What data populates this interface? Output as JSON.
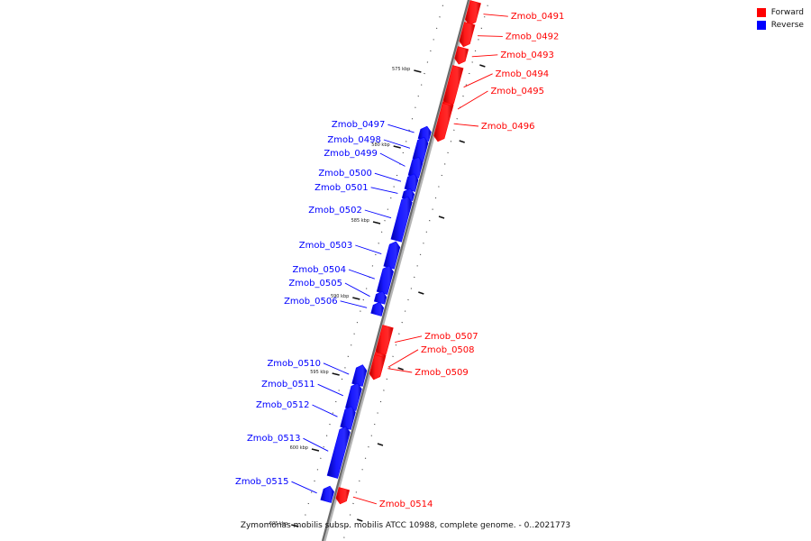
{
  "legend": {
    "forward": {
      "label": "Forward",
      "color": "#ff0000"
    },
    "reverse": {
      "label": "Reverse",
      "color": "#0000ff"
    }
  },
  "caption": "Zymomonas mobilis subsp. mobilis ATCC 10988, complete genome. - 0..2021773",
  "ticks": [
    {
      "label": "575 kbp",
      "t": 0.115
    },
    {
      "label": "580 kbp",
      "t": 0.255
    },
    {
      "label": "585 kbp",
      "t": 0.395
    },
    {
      "label": "590 kbp",
      "t": 0.535
    },
    {
      "label": "595 kbp",
      "t": 0.675
    },
    {
      "label": "600 kbp",
      "t": 0.815
    },
    {
      "label": "605 kbp",
      "t": 0.955
    }
  ],
  "genes": [
    {
      "name": "Zmob_0491",
      "strand": "forward",
      "t0": 0.0,
      "t1": 0.035,
      "label_t": 0.032
    },
    {
      "name": "Zmob_0492",
      "strand": "forward",
      "t0": 0.04,
      "t1": 0.075,
      "label_t": 0.069
    },
    {
      "name": "Zmob_0493",
      "strand": "forward",
      "t0": 0.085,
      "t1": 0.107,
      "label_t": 0.103
    },
    {
      "name": "Zmob_0494",
      "strand": "forward",
      "t0": 0.12,
      "t1": 0.185,
      "label_t": 0.138
    },
    {
      "name": "Zmob_0495",
      "strand": "forward",
      "t0": 0.187,
      "t1": 0.188,
      "label_t": 0.17
    },
    {
      "name": "Zmob_0496",
      "strand": "forward",
      "t0": 0.19,
      "t1": 0.25,
      "label_t": 0.235
    },
    {
      "name": "Zmob_0497",
      "strand": "reverse",
      "t0": 0.245,
      "t1": 0.262,
      "label_t": 0.232
    },
    {
      "name": "Zmob_0498",
      "strand": "reverse",
      "t0": 0.265,
      "t1": 0.3,
      "label_t": 0.26
    },
    {
      "name": "Zmob_0499",
      "strand": "reverse",
      "t0": 0.302,
      "t1": 0.33,
      "label_t": 0.285
    },
    {
      "name": "Zmob_0500",
      "strand": "reverse",
      "t0": 0.333,
      "t1": 0.355,
      "label_t": 0.322
    },
    {
      "name": "Zmob_0501",
      "strand": "reverse",
      "t0": 0.36,
      "t1": 0.368,
      "label_t": 0.348
    },
    {
      "name": "Zmob_0502",
      "strand": "reverse",
      "t0": 0.375,
      "t1": 0.448,
      "label_t": 0.39
    },
    {
      "name": "Zmob_0503",
      "strand": "reverse",
      "t0": 0.458,
      "t1": 0.498,
      "label_t": 0.455
    },
    {
      "name": "Zmob_0504",
      "strand": "reverse",
      "t0": 0.503,
      "t1": 0.545,
      "label_t": 0.5
    },
    {
      "name": "Zmob_0505",
      "strand": "reverse",
      "t0": 0.55,
      "t1": 0.563,
      "label_t": 0.525
    },
    {
      "name": "Zmob_0506",
      "strand": "reverse",
      "t0": 0.57,
      "t1": 0.585,
      "label_t": 0.558
    },
    {
      "name": "Zmob_0507",
      "strand": "forward",
      "t0": 0.6,
      "t1": 0.648,
      "label_t": 0.623
    },
    {
      "name": "Zmob_0508",
      "strand": "forward",
      "t0": 0.65,
      "t1": 0.69,
      "label_t": 0.648
    },
    {
      "name": "Zmob_0509",
      "strand": "forward",
      "t0": 0.655,
      "t1": 0.69,
      "label_t": 0.69
    },
    {
      "name": "Zmob_0510",
      "strand": "reverse",
      "t0": 0.686,
      "t1": 0.715,
      "label_t": 0.673
    },
    {
      "name": "Zmob_0511",
      "strand": "reverse",
      "t0": 0.72,
      "t1": 0.76,
      "label_t": 0.712
    },
    {
      "name": "Zmob_0512",
      "strand": "reverse",
      "t0": 0.763,
      "t1": 0.795,
      "label_t": 0.75
    },
    {
      "name": "Zmob_0513",
      "strand": "reverse",
      "t0": 0.8,
      "t1": 0.885,
      "label_t": 0.812
    },
    {
      "name": "Zmob_0514",
      "strand": "forward",
      "t0": 0.9,
      "t1": 0.92,
      "label_t": 0.933
    },
    {
      "name": "Zmob_0515",
      "strand": "reverse",
      "t0": 0.91,
      "t1": 0.93,
      "label_t": 0.892
    }
  ]
}
